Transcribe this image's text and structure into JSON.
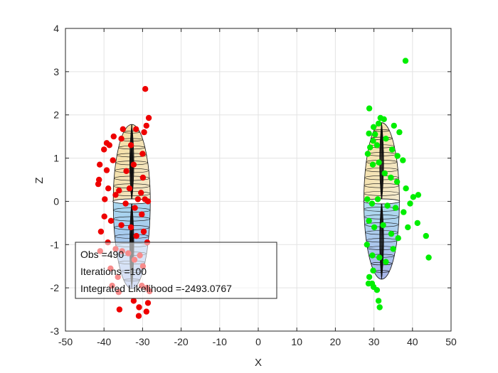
{
  "chart_data": {
    "type": "scatter",
    "title": "",
    "xlabel": "X",
    "ylabel": "Z",
    "xlim": [
      -50,
      50
    ],
    "ylim": [
      -3,
      4
    ],
    "xticks": [
      -50,
      -40,
      -30,
      -20,
      -10,
      0,
      10,
      20,
      30,
      40,
      50
    ],
    "yticks": [
      -3,
      -2,
      -1,
      0,
      1,
      2,
      3,
      4
    ],
    "grid": true,
    "series": [
      {
        "color": "#ee0000",
        "points": [
          [
            -29.3,
            2.6
          ],
          [
            -28.4,
            1.93
          ],
          [
            -29.0,
            1.75
          ],
          [
            -29.6,
            1.6
          ],
          [
            -31.7,
            1.67
          ],
          [
            -35.1,
            1.67
          ],
          [
            -37.5,
            1.5
          ],
          [
            -39.3,
            1.35
          ],
          [
            -38.6,
            1.3
          ],
          [
            -40.0,
            1.2
          ],
          [
            -35.5,
            1.45
          ],
          [
            -33.0,
            1.3
          ],
          [
            -30.0,
            1.1
          ],
          [
            -41.1,
            0.85
          ],
          [
            -39.3,
            0.72
          ],
          [
            -37.7,
            0.95
          ],
          [
            -34.2,
            0.7
          ],
          [
            -32.3,
            0.85
          ],
          [
            -29.9,
            0.55
          ],
          [
            -41.3,
            0.5
          ],
          [
            -41.5,
            0.4
          ],
          [
            -38.9,
            0.3
          ],
          [
            -36.1,
            0.25
          ],
          [
            -33.4,
            0.3
          ],
          [
            -31.2,
            0.05
          ],
          [
            -30.4,
            0.2
          ],
          [
            -29.4,
            0.05
          ],
          [
            -28.6,
            0.0
          ],
          [
            -39.8,
            0.05
          ],
          [
            -37.0,
            0.15
          ],
          [
            -34.4,
            -0.05
          ],
          [
            -32.0,
            -0.15
          ],
          [
            -30.2,
            -0.3
          ],
          [
            -39.9,
            -0.35
          ],
          [
            -38.2,
            -0.45
          ],
          [
            -35.5,
            -0.55
          ],
          [
            -33.0,
            -0.6
          ],
          [
            -31.6,
            -0.8
          ],
          [
            -29.7,
            -0.7
          ],
          [
            -28.8,
            -0.95
          ],
          [
            -40.8,
            -0.7
          ],
          [
            -39.0,
            -0.95
          ],
          [
            -37.0,
            -1.1
          ],
          [
            -35.3,
            -1.15
          ],
          [
            -33.7,
            -1.2
          ],
          [
            -32.1,
            -1.35
          ],
          [
            -30.7,
            -1.25
          ],
          [
            -29.9,
            -1.5
          ],
          [
            -41.0,
            -1.15
          ],
          [
            -38.3,
            -1.55
          ],
          [
            -36.4,
            -1.75
          ],
          [
            -30.2,
            -1.95
          ],
          [
            -28.9,
            -2.0
          ],
          [
            -28.2,
            -2.08
          ],
          [
            -37.9,
            -1.95
          ],
          [
            -36.2,
            -2.1
          ],
          [
            -32.3,
            -2.3
          ],
          [
            -28.6,
            -2.35
          ],
          [
            -30.9,
            -2.45
          ],
          [
            -36.0,
            -2.5
          ],
          [
            -29.0,
            -2.55
          ],
          [
            -31.0,
            -2.65
          ]
        ]
      },
      {
        "color": "#00ee00",
        "points": [
          [
            38.2,
            3.25
          ],
          [
            28.8,
            2.15
          ],
          [
            31.7,
            1.93
          ],
          [
            32.6,
            1.9
          ],
          [
            29.9,
            1.72
          ],
          [
            31.2,
            1.8
          ],
          [
            35.2,
            1.75
          ],
          [
            36.6,
            1.6
          ],
          [
            30.3,
            1.55
          ],
          [
            28.7,
            1.57
          ],
          [
            29.8,
            1.4
          ],
          [
            29.0,
            1.25
          ],
          [
            28.4,
            1.1
          ],
          [
            30.8,
            1.3
          ],
          [
            33.1,
            1.45
          ],
          [
            34.7,
            1.2
          ],
          [
            36.1,
            1.05
          ],
          [
            37.5,
            0.95
          ],
          [
            29.7,
            0.85
          ],
          [
            31.3,
            0.9
          ],
          [
            32.8,
            0.65
          ],
          [
            34.4,
            0.55
          ],
          [
            36.0,
            0.45
          ],
          [
            38.3,
            0.3
          ],
          [
            40.2,
            0.1
          ],
          [
            41.5,
            0.15
          ],
          [
            28.3,
            0.05
          ],
          [
            29.5,
            -0.05
          ],
          [
            31.0,
            0.05
          ],
          [
            33.5,
            -0.1
          ],
          [
            35.6,
            -0.15
          ],
          [
            37.7,
            -0.25
          ],
          [
            39.4,
            -0.05
          ],
          [
            28.7,
            -0.45
          ],
          [
            30.1,
            -0.6
          ],
          [
            32.4,
            -0.55
          ],
          [
            34.5,
            -0.75
          ],
          [
            36.3,
            -0.85
          ],
          [
            38.8,
            -0.6
          ],
          [
            41.3,
            -0.5
          ],
          [
            43.5,
            -0.8
          ],
          [
            28.2,
            -1.0
          ],
          [
            29.6,
            -1.25
          ],
          [
            31.4,
            -1.3
          ],
          [
            33.1,
            -1.4
          ],
          [
            35.0,
            -1.1
          ],
          [
            44.2,
            -1.3
          ],
          [
            28.8,
            -1.75
          ],
          [
            29.5,
            -1.9
          ],
          [
            29.9,
            -1.98
          ],
          [
            28.6,
            -1.9
          ],
          [
            30.8,
            -2.05
          ],
          [
            31.2,
            -2.3
          ],
          [
            31.5,
            -2.45
          ],
          [
            29.8,
            -1.6
          ]
        ]
      }
    ],
    "legend_box": {
      "line1": "Obs =490",
      "line2": "Iterations =100",
      "line3": "Integrated Likelihood =-2493.0767"
    }
  }
}
